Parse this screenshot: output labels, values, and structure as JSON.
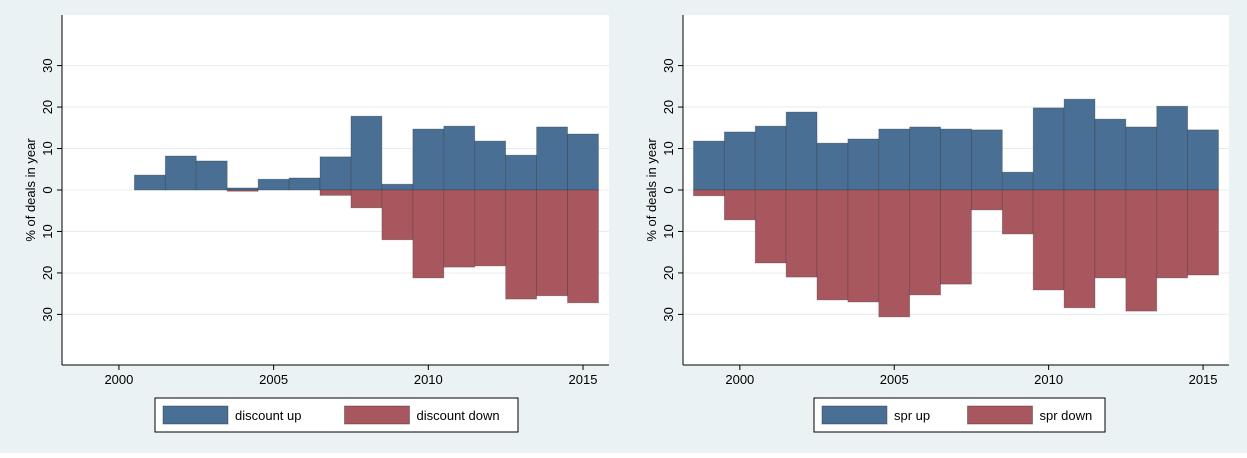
{
  "chart_data": [
    {
      "type": "bar",
      "ylabel": "% of deals in year",
      "x": [
        2001,
        2002,
        2003,
        2004,
        2005,
        2006,
        2007,
        2008,
        2009,
        2010,
        2011,
        2012,
        2013,
        2014,
        2015
      ],
      "series": [
        {
          "name": "discount up",
          "color": "#4a6f94",
          "values": [
            3.6,
            8.2,
            7.0,
            0.5,
            2.6,
            2.9,
            8.0,
            17.8,
            1.4,
            14.7,
            15.4,
            11.8,
            8.4,
            15.2,
            13.5
          ]
        },
        {
          "name": "discount down",
          "color": "#a9575f",
          "values": [
            0,
            0,
            0,
            -0.3,
            0,
            0,
            -1.3,
            -4.3,
            -12.0,
            -21.2,
            -18.6,
            -18.3,
            -26.3,
            -25.5,
            -27.2
          ]
        }
      ],
      "xlim": [
        1998.16,
        2015.84
      ],
      "xticks": [
        2000,
        2005,
        2010,
        2015
      ],
      "ylim": [
        -42.2,
        42.2
      ],
      "yticks": [
        {
          "value": -30,
          "label": "30"
        },
        {
          "value": -20,
          "label": "20"
        },
        {
          "value": -10,
          "label": "10"
        },
        0,
        10,
        20,
        30
      ],
      "grid": true
    },
    {
      "type": "bar",
      "ylabel": "% of deals in year",
      "x": [
        1999,
        2000,
        2001,
        2002,
        2003,
        2004,
        2005,
        2006,
        2007,
        2008,
        2009,
        2010,
        2011,
        2012,
        2013,
        2014,
        2015
      ],
      "series": [
        {
          "name": "spr up",
          "color": "#4a6f94",
          "values": [
            11.8,
            14.0,
            15.4,
            18.8,
            11.3,
            12.3,
            14.7,
            15.2,
            14.7,
            14.5,
            4.3,
            19.8,
            21.9,
            17.1,
            15.2,
            20.2,
            14.5
          ]
        },
        {
          "name": "spr down",
          "color": "#a9575f",
          "values": [
            -1.4,
            -7.2,
            -17.6,
            -21.0,
            -26.5,
            -27.0,
            -30.6,
            -25.3,
            -22.7,
            -4.8,
            -10.6,
            -24.1,
            -28.4,
            -21.2,
            -29.2,
            -21.2,
            -20.5
          ]
        }
      ],
      "xlim": [
        1998.16,
        2015.84
      ],
      "xticks": [
        2000,
        2005,
        2010,
        2015
      ],
      "ylim": [
        -42.2,
        42.2
      ],
      "yticks": [
        {
          "value": -30,
          "label": "30"
        },
        {
          "value": -20,
          "label": "20"
        },
        {
          "value": -10,
          "label": "10"
        },
        0,
        10,
        20,
        30
      ],
      "grid": true
    }
  ]
}
